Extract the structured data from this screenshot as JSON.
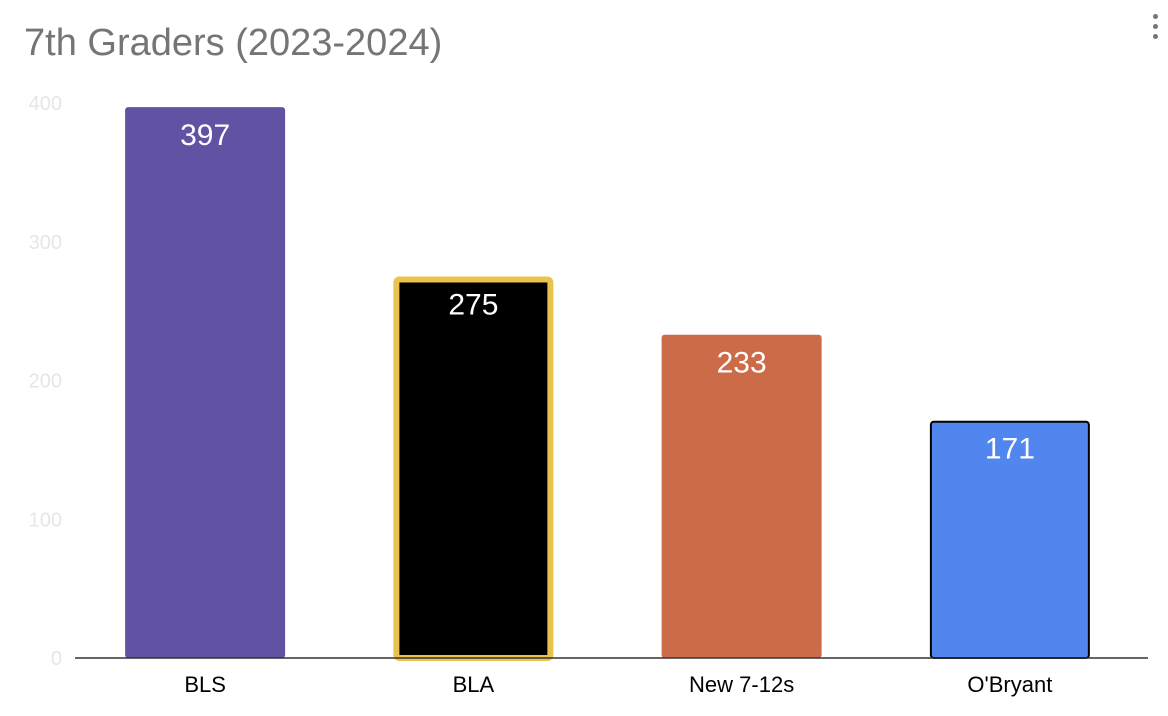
{
  "chart_data": {
    "type": "bar",
    "title": "7th Graders (2023-2024)",
    "xlabel": "",
    "ylabel": "",
    "ylim": [
      0,
      400
    ],
    "yticks": [
      0,
      100,
      200,
      300,
      400
    ],
    "grid": false,
    "legend": "none",
    "categories": [
      "BLS",
      "BLA",
      "New 7-12s",
      "O'Bryant"
    ],
    "values": [
      397,
      275,
      233,
      171
    ],
    "bar_colors": [
      "#6351a3",
      "#000000",
      "#cc6b47",
      "#5186ee"
    ],
    "bar_outlines": [
      "#6351a3",
      "#e8c34d",
      "#cc6b47",
      "#000000"
    ],
    "data_labels": [
      "397",
      "275",
      "233",
      "171"
    ]
  },
  "menu": {
    "icon": "more-vert-icon"
  }
}
